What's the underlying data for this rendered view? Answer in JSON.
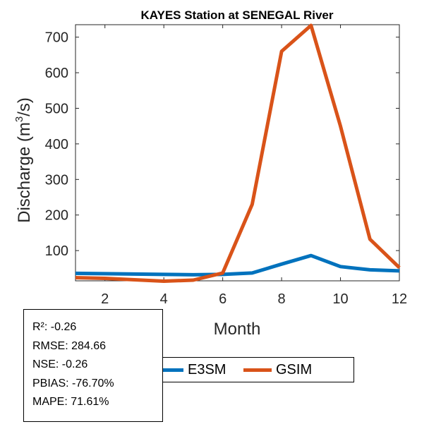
{
  "chart_data": {
    "type": "line",
    "title": "KAYES  Station at  SENEGAL  River",
    "xlabel": "Month",
    "ylabel_prefix": "Discharge (m",
    "ylabel_sup": "3",
    "ylabel_suffix": "/s)",
    "xlim": [
      1,
      12
    ],
    "ylim": [
      15,
      735
    ],
    "x_ticks": [
      2,
      4,
      6,
      8,
      10,
      12
    ],
    "y_ticks": [
      100,
      200,
      300,
      400,
      500,
      600,
      700
    ],
    "x": [
      1,
      2,
      3,
      4,
      5,
      6,
      7,
      8,
      9,
      10,
      11,
      12
    ],
    "series": [
      {
        "name": "E3SM",
        "color": "#0072BD",
        "values": [
          36,
          35,
          34,
          33,
          32,
          33,
          37,
          62,
          86,
          55,
          46,
          43
        ]
      },
      {
        "name": "GSIM",
        "color": "#D95319",
        "values": [
          24,
          22,
          18,
          14,
          17,
          37,
          230,
          660,
          733,
          450,
          132,
          52
        ]
      }
    ]
  },
  "stats": [
    "R²: -0.26",
    "RMSE: 284.66",
    "NSE: -0.26",
    "PBIAS: -76.70%",
    "MAPE: 71.61%"
  ]
}
